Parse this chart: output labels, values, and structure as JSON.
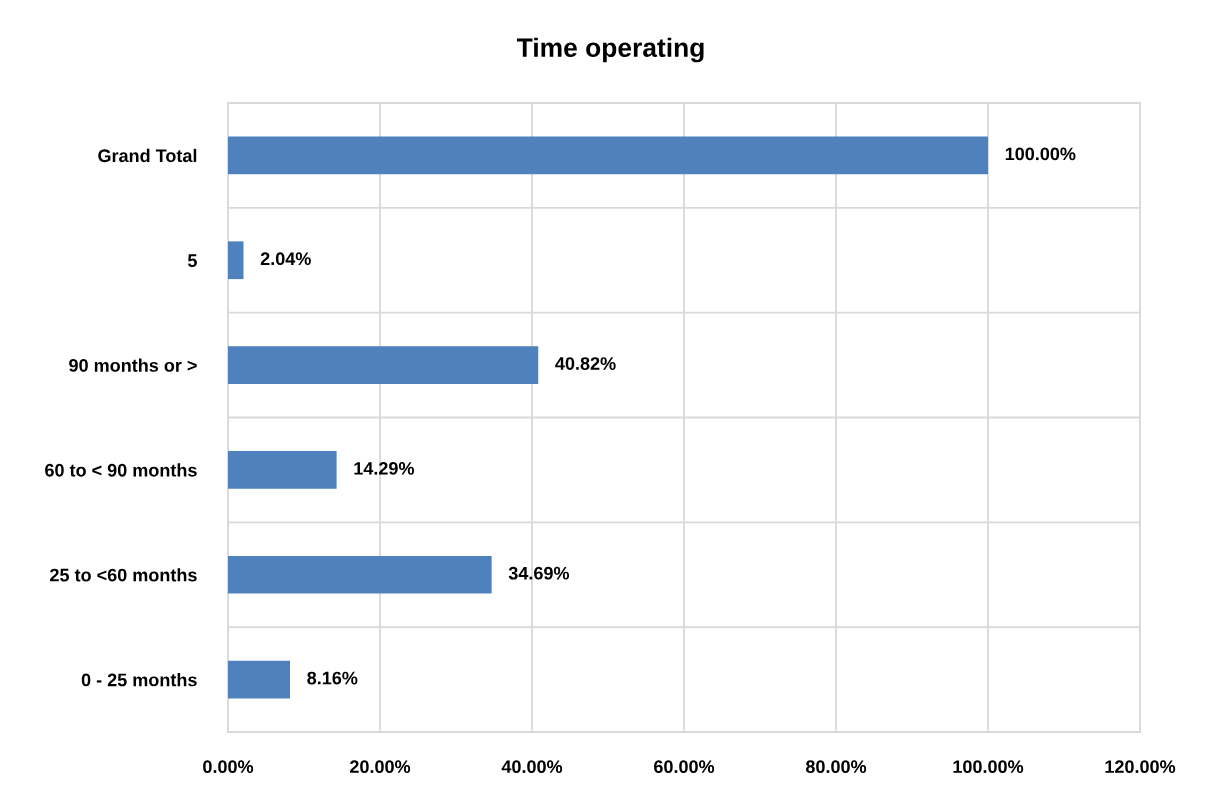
{
  "chart_data": {
    "type": "bar",
    "orientation": "horizontal",
    "title": "Time operating",
    "categories": [
      "Grand Total",
      "5",
      "90 months or >",
      "60 to < 90 months",
      "25 to <60 months",
      "0 - 25 months"
    ],
    "values": [
      100,
      2.04,
      40.82,
      14.29,
      34.69,
      8.16
    ],
    "value_labels": [
      "100.00%",
      "2.04%",
      "40.82%",
      "14.29%",
      "34.69%",
      "8.16%"
    ],
    "color": "#4f81bd",
    "xlim": [
      0,
      120
    ],
    "xticks": [
      {
        "value": 0,
        "label": "0.00%"
      },
      {
        "value": 20,
        "label": "20.00%"
      },
      {
        "value": 40,
        "label": "40.00%"
      },
      {
        "value": 60,
        "label": "60.00%"
      },
      {
        "value": 80,
        "label": "80.00%"
      },
      {
        "value": 100,
        "label": "100.00%"
      },
      {
        "value": 120,
        "label": "120.00%"
      }
    ],
    "grid": true,
    "legend": false
  }
}
